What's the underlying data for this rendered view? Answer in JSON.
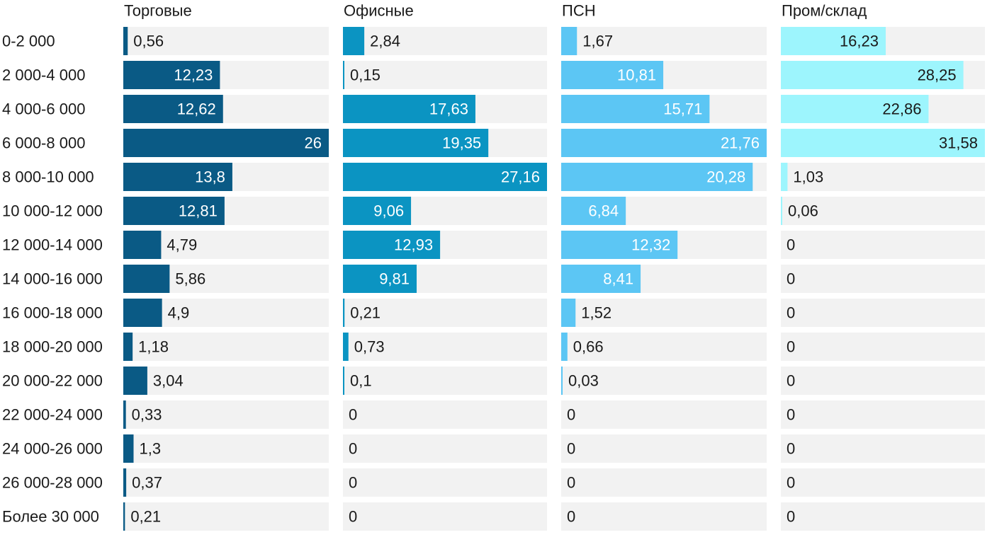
{
  "chart_data": {
    "type": "bar",
    "orientation": "horizontal",
    "layout": "small-multiples",
    "grid": false,
    "legend": "none",
    "categories": [
      "0-2 000",
      "2 000-4 000",
      "4 000-6 000",
      "6 000-8 000",
      "8 000-10 000",
      "10 000-12 000",
      "12 000-14 000",
      "14 000-16 000",
      "16 000-18 000",
      "18 000-20 000",
      "20 000-22 000",
      "22 000-24 000",
      "24 000-26 000",
      "26 000-28 000",
      "Более 30 000"
    ],
    "series": [
      {
        "name": "Торговые",
        "color": "#0a5a85",
        "max": 26,
        "values": [
          0.56,
          12.23,
          12.62,
          26,
          13.8,
          12.81,
          4.79,
          5.86,
          4.9,
          1.18,
          3.04,
          0.33,
          1.3,
          0.37,
          0.21
        ],
        "labels": [
          "0,56",
          "12,23",
          "12,62",
          "26",
          "13,8",
          "12,81",
          "4,79",
          "5,86",
          "4,9",
          "1,18",
          "3,04",
          "0,33",
          "1,3",
          "0,37",
          "0,21"
        ]
      },
      {
        "name": "Офисные",
        "color": "#0b94c2",
        "max": 27.16,
        "values": [
          2.84,
          0.15,
          17.63,
          19.35,
          27.16,
          9.06,
          12.93,
          9.81,
          0.21,
          0.73,
          0.1,
          0,
          0,
          0,
          0
        ],
        "labels": [
          "2,84",
          "0,15",
          "17,63",
          "19,35",
          "27,16",
          "9,06",
          "12,93",
          "9,81",
          "0,21",
          "0,73",
          "0,1",
          "0",
          "0",
          "0",
          "0"
        ]
      },
      {
        "name": "ПСН",
        "color": "#5cc6f4",
        "max": 21.76,
        "values": [
          1.67,
          10.81,
          15.71,
          21.76,
          20.28,
          6.84,
          12.32,
          8.41,
          1.52,
          0.66,
          0.03,
          0,
          0,
          0,
          0
        ],
        "labels": [
          "1,67",
          "10,81",
          "15,71",
          "21,76",
          "20,28",
          "6,84",
          "12,32",
          "8,41",
          "1,52",
          "0,66",
          "0,03",
          "0",
          "0",
          "0",
          "0"
        ]
      },
      {
        "name": "Пром/склад",
        "color": "#9df5fd",
        "max": 31.58,
        "values": [
          16.23,
          28.25,
          22.86,
          31.58,
          1.03,
          0.06,
          0,
          0,
          0,
          0,
          0,
          0,
          0,
          0,
          0
        ],
        "labels": [
          "16,23",
          "28,25",
          "22,86",
          "31,58",
          "1,03",
          "0,06",
          "0",
          "0",
          "0",
          "0",
          "0",
          "0",
          "0",
          "0",
          "0"
        ]
      }
    ]
  }
}
